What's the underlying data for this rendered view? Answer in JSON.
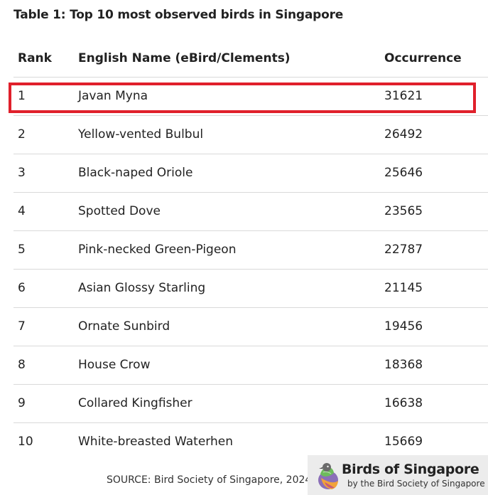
{
  "title": "Table 1: Top 10 most observed birds in Singapore",
  "table": {
    "headers": {
      "rank": "Rank",
      "name": "English Name (eBird/Clements)",
      "occurrence": "Occurrence"
    },
    "rows": [
      {
        "rank": "1",
        "name": "Javan Myna",
        "occurrence": "31621"
      },
      {
        "rank": "2",
        "name": "Yellow-vented Bulbul",
        "occurrence": "26492"
      },
      {
        "rank": "3",
        "name": "Black-naped Oriole",
        "occurrence": "25646"
      },
      {
        "rank": "4",
        "name": "Spotted Dove",
        "occurrence": "23565"
      },
      {
        "rank": "5",
        "name": "Pink-necked Green-Pigeon",
        "occurrence": "22787"
      },
      {
        "rank": "6",
        "name": "Asian Glossy Starling",
        "occurrence": "21145"
      },
      {
        "rank": "7",
        "name": "Ornate Sunbird",
        "occurrence": "19456"
      },
      {
        "rank": "8",
        "name": "House Crow",
        "occurrence": "18368"
      },
      {
        "rank": "9",
        "name": "Collared Kingfisher",
        "occurrence": "16638"
      },
      {
        "rank": "10",
        "name": "White-breasted Waterhen",
        "occurrence": "15669"
      }
    ]
  },
  "highlight": {
    "row_rank": "1",
    "color": "#e0202b"
  },
  "source": "SOURCE: Bird Society of Singapore, 2024",
  "brand": {
    "name": "Birds of Singapore",
    "subtitle": "by the Bird Society of Singapore",
    "logo_icon": "bird-icon"
  }
}
